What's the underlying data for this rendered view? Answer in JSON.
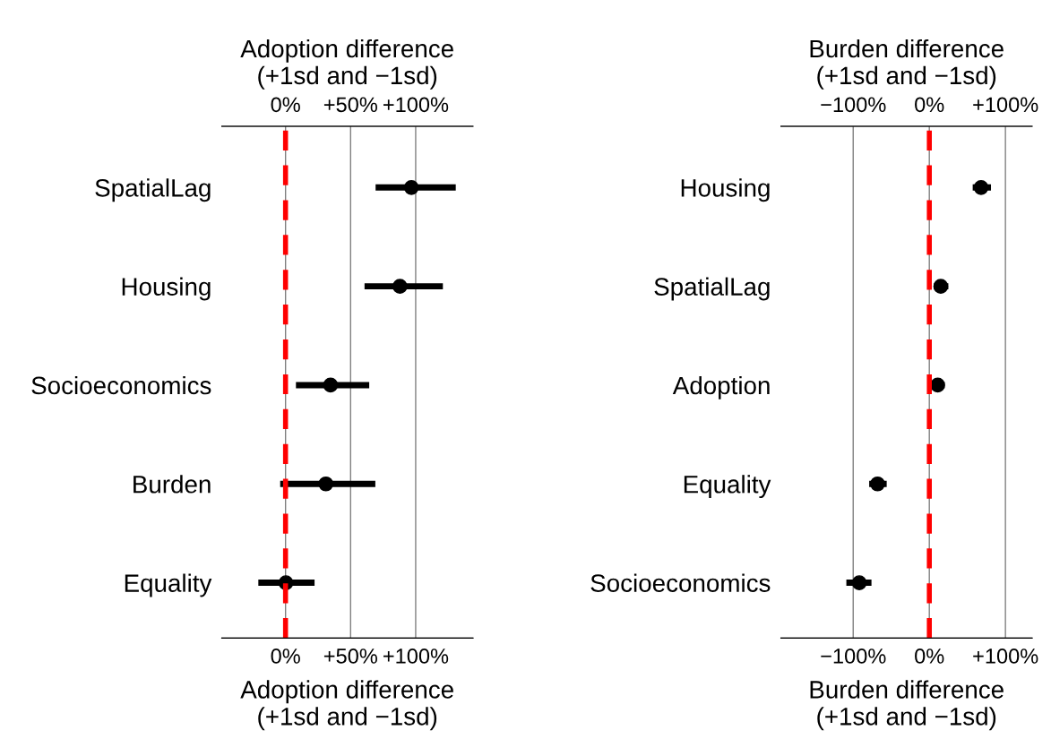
{
  "chart_data": [
    {
      "type": "scatter",
      "orientation": "horizontal",
      "categories": [
        "SpatialLag",
        "Housing",
        "Socioeconomics",
        "Burden",
        "Equality"
      ],
      "series": [
        {
          "color": "#000000",
          "values": [
            96.7,
            87.9,
            34.6,
            31.0,
            0.3
          ],
          "errors": [
            [
              69.2,
              130.8
            ],
            [
              60.7,
              120.9
            ],
            [
              8.0,
              64.3
            ],
            [
              -4.1,
              69.0
            ],
            [
              -20.9,
              22.3
            ]
          ]
        }
      ],
      "marker": "circle",
      "xlabel": "Adoption difference\n(+1sd and −1sd)",
      "x2label": "Adoption difference\n(+1sd and −1sd)",
      "xlim": [
        -49,
        144
      ],
      "xticks": [
        {
          "value": 0,
          "label": "0%"
        },
        {
          "value": 50,
          "label": "+50%"
        },
        {
          "value": 100,
          "label": "+100%"
        }
      ],
      "x2lim": [
        -49,
        144
      ],
      "x2ticks": [
        {
          "value": 0,
          "label": "0%"
        },
        {
          "value": 50,
          "label": "+50%"
        },
        {
          "value": 100,
          "label": "+100%"
        }
      ],
      "grid": "x",
      "ref_lines": [
        {
          "axis": "x",
          "value": 0,
          "color": "#ff0000",
          "line_style": "dashed"
        }
      ]
    },
    {
      "type": "scatter",
      "orientation": "horizontal",
      "categories": [
        "Housing",
        "SpatialLag",
        "Adoption",
        "Equality",
        "Socioeconomics"
      ],
      "series": [
        {
          "color": "#000000",
          "values": [
            68,
            15,
            11,
            -68,
            -92
          ],
          "errors": [
            [
              57,
              81
            ],
            [
              6,
              25
            ],
            [
              3,
              20
            ],
            [
              -79,
              -56
            ],
            [
              -109,
              -76
            ]
          ]
        }
      ],
      "marker": "circle",
      "xlabel": "Burden difference\n(+1sd and −1sd)",
      "x2label": "Burden difference\n(+1sd and −1sd)",
      "xlim": [
        -195,
        135
      ],
      "xticks": [
        {
          "value": -100,
          "label": "−100%"
        },
        {
          "value": 0,
          "label": "0%"
        },
        {
          "value": 100,
          "label": "+100%"
        }
      ],
      "x2lim": [
        -195,
        135
      ],
      "x2ticks": [
        {
          "value": -100,
          "label": "−100%"
        },
        {
          "value": 0,
          "label": "0%"
        },
        {
          "value": 100,
          "label": "+100%"
        }
      ],
      "grid": "x",
      "ref_lines": [
        {
          "axis": "x",
          "value": 0,
          "color": "#ff0000",
          "line_style": "dashed"
        }
      ]
    }
  ]
}
